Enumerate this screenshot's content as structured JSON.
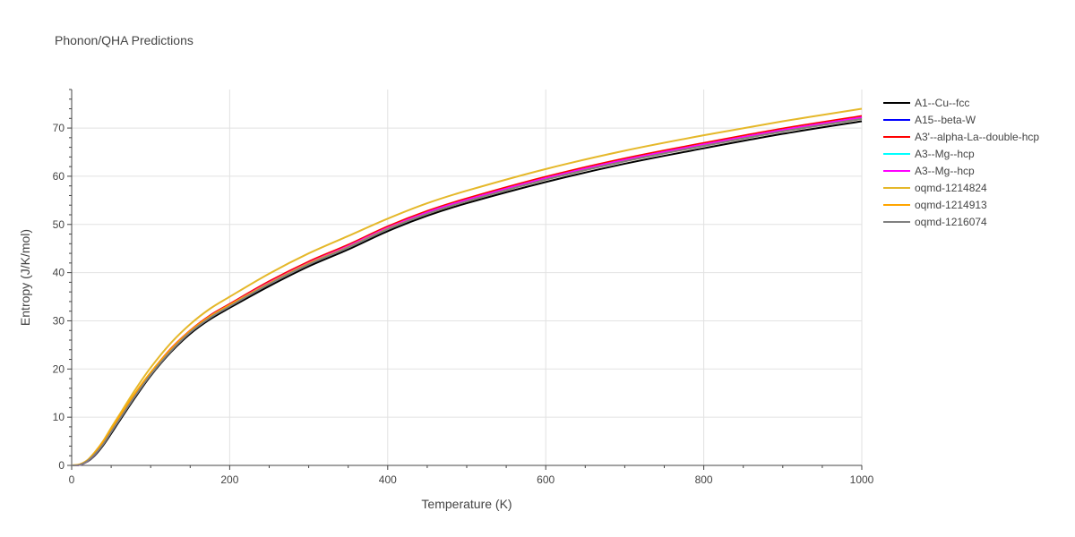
{
  "chart_data": {
    "type": "line",
    "title": "Phonon/QHA Predictions",
    "xlabel": "Temperature (K)",
    "ylabel": "Entropy (J/K/mol)",
    "xlim": [
      0,
      1000
    ],
    "ylim": [
      0,
      78
    ],
    "xticks": [
      0,
      200,
      400,
      600,
      800,
      1000
    ],
    "yticks": [
      0,
      10,
      20,
      30,
      40,
      50,
      60,
      70
    ],
    "grid": true,
    "legend_position": "right",
    "x": [
      0,
      10,
      20,
      30,
      40,
      50,
      60,
      80,
      100,
      125,
      150,
      175,
      200,
      250,
      300,
      350,
      400,
      450,
      500,
      600,
      700,
      800,
      900,
      1000
    ],
    "series": [
      {
        "name": "A1--Cu--fcc",
        "color": "#000000",
        "values": [
          0,
          0.1,
          0.8,
          2.2,
          4.2,
          6.6,
          9.1,
          14.0,
          18.6,
          23.4,
          27.3,
          30.3,
          32.7,
          37.2,
          41.3,
          44.8,
          48.6,
          51.8,
          54.4,
          58.8,
          62.6,
          65.8,
          68.8,
          71.4
        ]
      },
      {
        "name": "A15--beta-W",
        "color": "#0000ff",
        "values": [
          0,
          0.1,
          0.9,
          2.4,
          4.5,
          7.0,
          9.5,
          14.5,
          19.0,
          23.9,
          27.8,
          30.9,
          33.3,
          37.9,
          42.0,
          45.5,
          49.3,
          52.5,
          55.1,
          59.6,
          63.4,
          66.6,
          69.6,
          72.2
        ]
      },
      {
        "name": "A3'--alpha-La--double-hcp",
        "color": "#ff0000",
        "values": [
          0,
          0.1,
          0.9,
          2.5,
          4.6,
          7.1,
          9.7,
          14.7,
          19.2,
          24.1,
          28.0,
          31.1,
          33.5,
          38.2,
          42.3,
          45.8,
          49.6,
          52.8,
          55.4,
          59.9,
          63.7,
          66.9,
          69.9,
          72.5
        ]
      },
      {
        "name": "A3--Mg--hcp",
        "color": "#00ffff",
        "values": [
          0,
          0.1,
          0.9,
          2.4,
          4.5,
          7.0,
          9.5,
          14.5,
          19.0,
          23.9,
          27.8,
          30.9,
          33.3,
          37.9,
          42.0,
          45.5,
          49.3,
          52.5,
          55.1,
          59.6,
          63.4,
          66.6,
          69.6,
          72.2
        ]
      },
      {
        "name": "A3--Mg--hcp",
        "color": "#ff00ff",
        "values": [
          0,
          0.1,
          0.9,
          2.4,
          4.5,
          7.0,
          9.5,
          14.5,
          19.0,
          23.9,
          27.8,
          30.9,
          33.3,
          37.9,
          42.0,
          45.5,
          49.3,
          52.5,
          55.1,
          59.6,
          63.4,
          66.6,
          69.6,
          72.2
        ]
      },
      {
        "name": "oqmd-1214824",
        "color": "#e5b82a",
        "values": [
          0,
          0.2,
          1.1,
          2.9,
          5.1,
          7.8,
          10.4,
          15.6,
          20.3,
          25.3,
          29.3,
          32.5,
          35.0,
          39.8,
          44.0,
          47.6,
          51.2,
          54.4,
          57.0,
          61.5,
          65.3,
          68.5,
          71.4,
          74.0
        ]
      },
      {
        "name": "oqmd-1214913",
        "color": "#ffa500",
        "values": [
          0,
          0.2,
          1.0,
          2.7,
          4.9,
          7.4,
          10.0,
          14.9,
          19.3,
          24.0,
          27.9,
          30.9,
          33.3,
          37.8,
          41.9,
          45.3,
          49.1,
          52.2,
          54.8,
          59.3,
          63.1,
          66.3,
          69.3,
          71.9
        ]
      },
      {
        "name": "oqmd-1216074",
        "color": "#808080",
        "values": [
          0,
          0.1,
          0.9,
          2.4,
          4.4,
          6.9,
          9.4,
          14.3,
          18.8,
          23.6,
          27.6,
          30.6,
          33.0,
          37.6,
          41.7,
          45.2,
          49.0,
          52.2,
          54.8,
          59.3,
          63.1,
          66.3,
          69.3,
          71.9
        ]
      }
    ]
  }
}
